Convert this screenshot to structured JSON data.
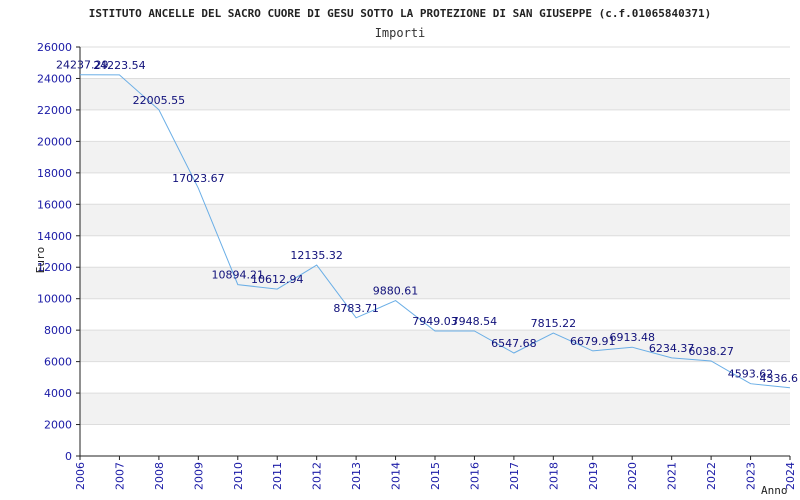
{
  "chart_data": {
    "type": "line",
    "title": "ISTITUTO ANCELLE DEL SACRO CUORE DI GESU SOTTO LA PROTEZIONE DI SAN GIUSEPPE (c.f.01065840371)",
    "subtitle": "Importi",
    "xlabel": "Anno",
    "ylabel": "Euro",
    "x": [
      "2006",
      "2007",
      "2008",
      "2009",
      "2010",
      "2011",
      "2012",
      "2013",
      "2014",
      "2015",
      "2016",
      "2017",
      "2018",
      "2019",
      "2020",
      "2021",
      "2022",
      "2023",
      "2024"
    ],
    "values": [
      24237.29,
      24223.54,
      22005.55,
      17023.67,
      10894.21,
      10612.94,
      12135.32,
      8783.71,
      9880.61,
      7949.03,
      7948.54,
      6547.68,
      7815.22,
      6679.91,
      6913.48,
      6234.37,
      6038.27,
      4593.62,
      4336.6
    ],
    "data_labels": [
      "24237.29",
      "24223.54",
      "22005.55",
      "17023.67",
      "10894.21",
      "10612.94",
      "12135.32",
      "8783.71",
      "9880.61",
      "7949.03",
      "7948.54",
      "6547.68",
      "7815.22",
      "6679.91",
      "6913.48",
      "6234.37",
      "6038.27",
      "4593.62",
      "4336.6"
    ],
    "ylim": [
      0,
      26000
    ],
    "yticks": [
      "0",
      "2000",
      "4000",
      "6000",
      "8000",
      "10000",
      "12000",
      "14000",
      "16000",
      "18000",
      "20000",
      "22000",
      "24000",
      "26000"
    ],
    "grid": "horizontal alternating bands",
    "colors": {
      "line": "#6aaee6",
      "band": "#f2f2f2",
      "axis": "#222222",
      "tick_text": "#1a1aa6",
      "label_text": "#10107a"
    }
  }
}
